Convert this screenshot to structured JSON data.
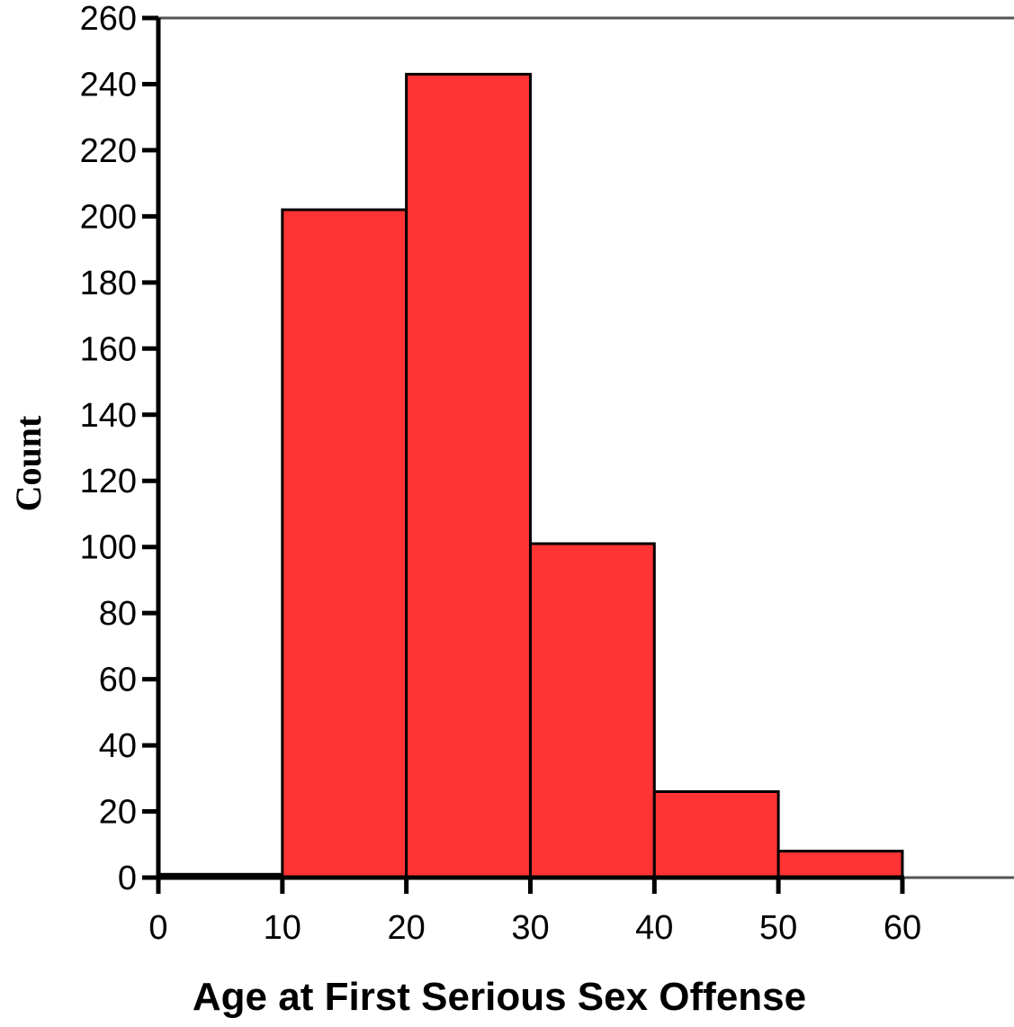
{
  "chart_data": {
    "type": "bar",
    "subtype": "histogram",
    "bins": [
      {
        "start": 0,
        "end": 10,
        "count": 1
      },
      {
        "start": 10,
        "end": 20,
        "count": 202
      },
      {
        "start": 20,
        "end": 30,
        "count": 243
      },
      {
        "start": 30,
        "end": 40,
        "count": 101
      },
      {
        "start": 40,
        "end": 50,
        "count": 26
      },
      {
        "start": 50,
        "end": 60,
        "count": 8
      }
    ],
    "xlabel": "Age at First Serious Sex Offense",
    "ylabel": "Count",
    "xlim": [
      0,
      69
    ],
    "ylim": [
      0,
      260
    ],
    "x_ticks": [
      "0",
      "10",
      "20",
      "30",
      "40",
      "50",
      "60"
    ],
    "y_ticks": [
      "0",
      "20",
      "40",
      "60",
      "80",
      "100",
      "120",
      "140",
      "160",
      "180",
      "200",
      "220",
      "240",
      "260"
    ],
    "grid": false,
    "legend": "none",
    "colors": {
      "bar_fill": "#ff3333",
      "bar_stroke": "#000000",
      "axis": "#000000",
      "frame": "#555555"
    }
  }
}
